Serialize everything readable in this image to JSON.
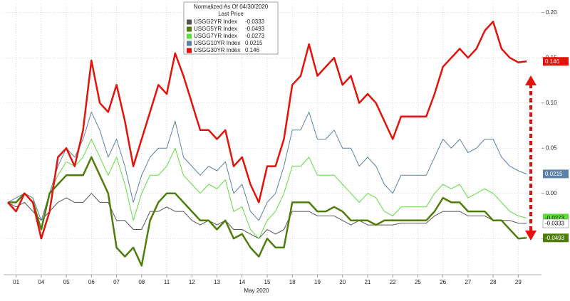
{
  "chart_data": {
    "type": "line",
    "legend_title": "Normalized As Of 04/30/2020",
    "legend_subtitle": "Last Price",
    "xlabel": "May 2020",
    "categories": [
      null,
      "01",
      null,
      null,
      "04",
      null,
      null,
      "05",
      null,
      null,
      "06",
      null,
      null,
      "07",
      null,
      null,
      "08",
      null,
      null,
      "11",
      null,
      null,
      "12",
      null,
      null,
      "13",
      null,
      null,
      "14",
      null,
      null,
      "15",
      null,
      null,
      "18",
      null,
      null,
      "19",
      null,
      null,
      "20",
      null,
      null,
      "21",
      null,
      null,
      "22",
      null,
      null,
      "25",
      null,
      null,
      "26",
      null,
      null,
      "27",
      null,
      null,
      "28",
      null,
      null,
      "29",
      null
    ],
    "ylim": [
      -0.09,
      0.21
    ],
    "yticks": [
      {
        "value": 0.2,
        "label": "0.20"
      },
      {
        "value": 0.15,
        "label": "0.15"
      },
      {
        "value": 0.1,
        "label": "0.10"
      },
      {
        "value": 0.05,
        "label": "0.05"
      },
      {
        "value": 0,
        "label": "0.00"
      },
      {
        "value": -0.05,
        "label": "-0.05"
      }
    ],
    "grid": true,
    "series": [
      {
        "name": "USGG2YR Index",
        "last_price": "-0.0333",
        "color": "#555555",
        "width": 1,
        "values": [
          -0.01,
          -0.015,
          -0.01,
          -0.02,
          -0.03,
          -0.02,
          -0.01,
          -0.005,
          -0.01,
          -0.01,
          0.0,
          -0.01,
          -0.01,
          -0.03,
          -0.03,
          -0.04,
          -0.04,
          -0.02,
          -0.02,
          -0.015,
          -0.02,
          -0.02,
          -0.03,
          -0.035,
          -0.03,
          -0.035,
          -0.03,
          -0.04,
          -0.04,
          -0.045,
          -0.05,
          -0.04,
          -0.045,
          -0.04,
          -0.02,
          -0.02,
          -0.02,
          -0.025,
          -0.025,
          -0.025,
          -0.03,
          -0.035,
          -0.03,
          -0.035,
          -0.035,
          -0.035,
          -0.035,
          -0.033,
          -0.033,
          -0.033,
          -0.033,
          -0.025,
          -0.02,
          -0.02,
          -0.02,
          -0.025,
          -0.025,
          -0.025,
          -0.03,
          -0.03,
          -0.03,
          -0.033,
          -0.0333
        ]
      },
      {
        "name": "USGG5YR Index",
        "last_price": "-0.0493",
        "color": "#4f7d0c",
        "width": 2.5,
        "values": [
          -0.01,
          -0.01,
          0.0,
          -0.01,
          -0.04,
          0.0,
          0.01,
          0.02,
          0.02,
          0.02,
          0.04,
          0.02,
          0.0,
          -0.06,
          -0.07,
          -0.06,
          -0.08,
          -0.03,
          -0.01,
          0.0,
          0.0,
          -0.01,
          -0.02,
          -0.03,
          -0.03,
          -0.04,
          -0.03,
          -0.05,
          -0.045,
          -0.06,
          -0.07,
          -0.05,
          -0.06,
          -0.06,
          -0.01,
          -0.01,
          -0.01,
          -0.02,
          -0.02,
          -0.015,
          -0.02,
          -0.03,
          -0.03,
          -0.03,
          -0.035,
          -0.03,
          -0.03,
          -0.03,
          -0.03,
          -0.03,
          -0.03,
          -0.02,
          -0.005,
          -0.01,
          -0.01,
          -0.02,
          -0.02,
          -0.02,
          -0.03,
          -0.03,
          -0.04,
          -0.05,
          -0.0493
        ]
      },
      {
        "name": "USGG7YR Index",
        "last_price": "-0.0273",
        "color": "#5fdc3c",
        "width": 1,
        "values": [
          -0.01,
          -0.01,
          0.0,
          -0.005,
          -0.04,
          0.0,
          0.02,
          0.035,
          0.03,
          0.04,
          0.06,
          0.04,
          0.02,
          0.04,
          0.01,
          -0.03,
          0.0,
          0.02,
          0.02,
          0.03,
          0.05,
          0.02,
          0.01,
          0.0,
          0.01,
          0.005,
          0.015,
          -0.02,
          -0.015,
          -0.04,
          -0.05,
          -0.03,
          -0.02,
          0.0,
          0.03,
          0.03,
          0.04,
          0.02,
          0.02,
          0.02,
          0.01,
          0.0,
          -0.01,
          0.0,
          -0.005,
          -0.02,
          -0.025,
          -0.015,
          -0.015,
          -0.015,
          -0.015,
          0.0,
          0.01,
          0.005,
          0.01,
          -0.005,
          0.0,
          0.005,
          0.0,
          -0.01,
          -0.02,
          -0.025,
          -0.0273
        ]
      },
      {
        "name": "USGG10YR Index",
        "last_price": "0.0215",
        "color": "#5b81a6",
        "width": 1,
        "values": [
          -0.01,
          -0.005,
          0.0,
          -0.005,
          -0.03,
          0.0,
          0.03,
          0.05,
          0.04,
          0.06,
          0.09,
          0.07,
          0.04,
          0.06,
          0.03,
          -0.01,
          0.02,
          0.04,
          0.05,
          0.05,
          0.08,
          0.04,
          0.03,
          0.02,
          0.03,
          0.025,
          0.035,
          0.0,
          0.01,
          -0.02,
          -0.03,
          -0.01,
          0.0,
          0.03,
          0.07,
          0.07,
          0.09,
          0.06,
          0.06,
          0.07,
          0.05,
          0.05,
          0.03,
          0.04,
          0.03,
          0.01,
          0.0,
          0.02,
          0.02,
          0.02,
          0.02,
          0.04,
          0.06,
          0.05,
          0.06,
          0.045,
          0.05,
          0.06,
          0.06,
          0.04,
          0.03,
          0.025,
          0.0215
        ]
      },
      {
        "name": "USGG30YR Index",
        "last_price": "0.146",
        "color": "#e3120b",
        "width": 2.5,
        "values": [
          -0.01,
          -0.02,
          0.0,
          -0.01,
          -0.05,
          -0.02,
          0.04,
          0.05,
          0.03,
          0.07,
          0.147,
          0.1,
          0.09,
          0.12,
          0.08,
          0.03,
          0.06,
          0.09,
          0.12,
          0.11,
          0.155,
          0.13,
          0.1,
          0.07,
          0.07,
          0.06,
          0.07,
          0.03,
          0.04,
          0.01,
          -0.01,
          0.03,
          0.03,
          0.06,
          0.12,
          0.13,
          0.165,
          0.13,
          0.14,
          0.15,
          0.12,
          0.13,
          0.1,
          0.11,
          0.1,
          0.08,
          0.06,
          0.085,
          0.085,
          0.085,
          0.085,
          0.11,
          0.14,
          0.15,
          0.16,
          0.15,
          0.16,
          0.18,
          0.19,
          0.16,
          0.15,
          0.145,
          0.146
        ]
      }
    ]
  }
}
